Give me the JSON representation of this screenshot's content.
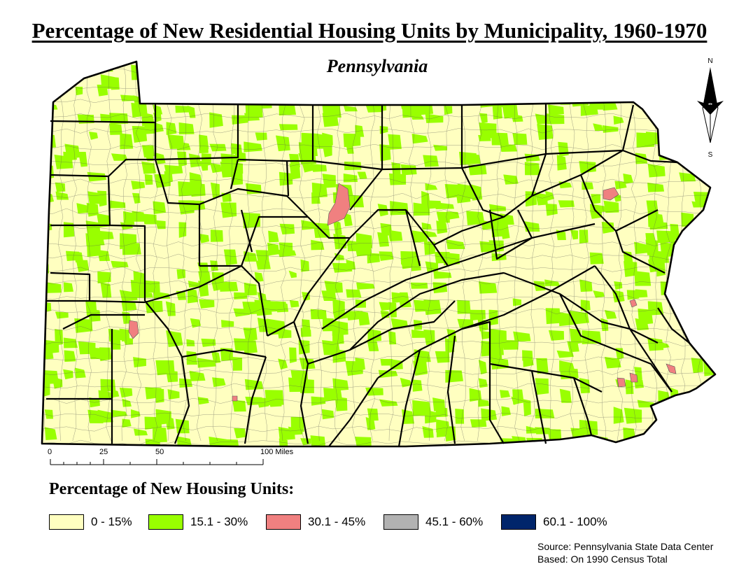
{
  "title": "Percentage of New Residential Housing Units by Municipality, 1960-1970",
  "subtitle": "Pennsylvania",
  "north_arrow": {
    "north_label": "N",
    "south_label": "S"
  },
  "scale_bar": {
    "labels": [
      "0",
      "25",
      "50",
      "100 Miles"
    ]
  },
  "legend": {
    "title": "Percentage of New Housing Units:",
    "items": [
      {
        "label": "0 - 15%",
        "color": "#ffffc0"
      },
      {
        "label": "15.1 - 30%",
        "color": "#99ff00"
      },
      {
        "label": "30.1 - 45%",
        "color": "#f08080"
      },
      {
        "label": "45.1 - 60%",
        "color": "#b2b2b2"
      },
      {
        "label": "60.1 - 100%",
        "color": "#00256b"
      }
    ]
  },
  "source": {
    "line1": "Source: Pennsylvania State Data Center",
    "line2": "Based: On 1990 Census Total"
  }
}
